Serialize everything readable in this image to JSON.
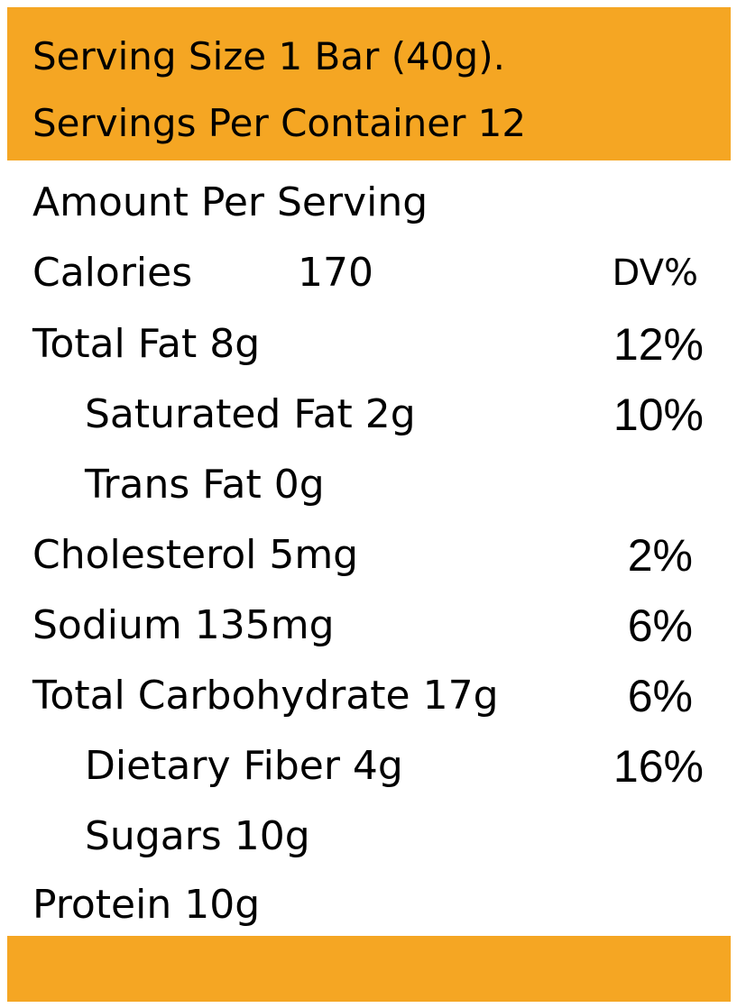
{
  "colors": {
    "band": "#F5A623",
    "background": "#FFFFFF",
    "text": "#000000"
  },
  "header": {
    "serving_size": "Serving Size 1 Bar (40g).",
    "servings_per_container": "Servings Per Container 12"
  },
  "amount_per_serving": "Amount Per Serving",
  "calories": {
    "label": "Calories",
    "value": "170",
    "dv_header": "DV%"
  },
  "nutrients": [
    {
      "name": "Total Fat 8g",
      "dv": "12%"
    },
    {
      "name": "Saturated Fat 2g",
      "dv": "10%"
    },
    {
      "name": "Trans Fat 0g",
      "dv": ""
    },
    {
      "name": "Cholesterol 5mg",
      "dv": "2%"
    },
    {
      "name": "Sodium 135mg",
      "dv": "6%"
    },
    {
      "name": "Total Carbohydrate 17g",
      "dv": "6%"
    },
    {
      "name": "Dietary Fiber 4g",
      "dv": "16%"
    },
    {
      "name": "Sugars 10g",
      "dv": ""
    },
    {
      "name": "Protein 10g",
      "dv": ""
    }
  ]
}
